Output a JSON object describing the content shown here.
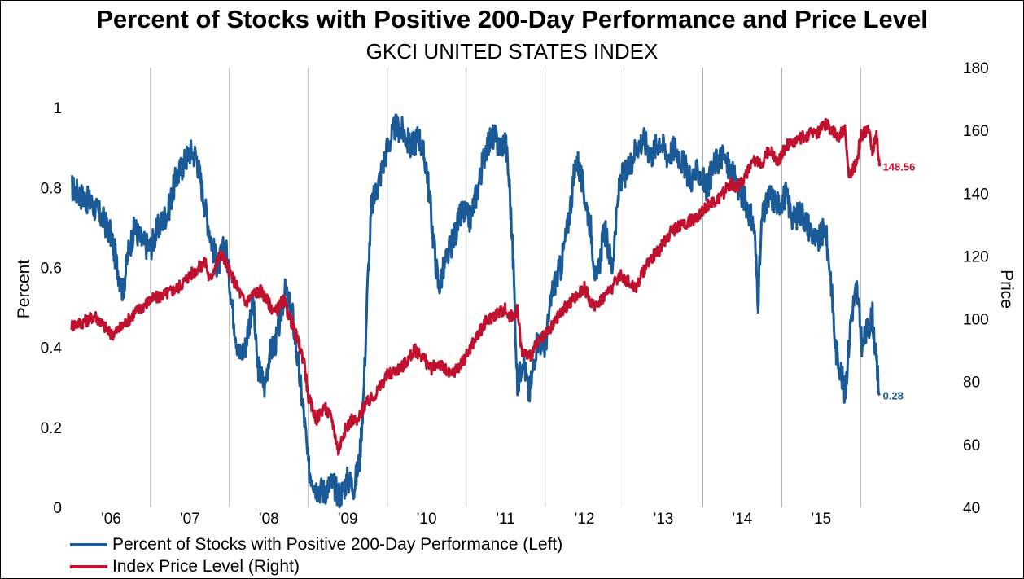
{
  "chart_data": {
    "type": "line",
    "title": "Percent of Stocks with Positive 200-Day Performance and Price Level",
    "subtitle": "GKCI UNITED STATES INDEX",
    "ylabel_left": "Percent",
    "ylabel_right": "Price",
    "xlabel": "",
    "x_ticks": [
      "'06",
      "'07",
      "'08",
      "'09",
      "'10",
      "'11",
      "'12",
      "'13",
      "'14",
      "'15"
    ],
    "x_range": [
      2005.5,
      2016.25
    ],
    "y_left_ticks": [
      "0",
      "0.2",
      "0.4",
      "0.6",
      "0.8",
      "1"
    ],
    "y_left_range": [
      0,
      1.1
    ],
    "y_right_ticks": [
      "40",
      "60",
      "80",
      "100",
      "120",
      "140",
      "160",
      "180"
    ],
    "y_right_range": [
      40,
      180
    ],
    "grid": "vertical",
    "legend_position": "bottom-left",
    "series": [
      {
        "name": "Percent of Stocks with Positive 200-Day Performance  (Left)",
        "axis": "left",
        "color": "#1a5a96",
        "end_label": "0.28",
        "points": [
          [
            2005.5,
            0.8
          ],
          [
            2005.62,
            0.78
          ],
          [
            2005.75,
            0.76
          ],
          [
            2005.9,
            0.72
          ],
          [
            2006.0,
            0.68
          ],
          [
            2006.08,
            0.6
          ],
          [
            2006.15,
            0.54
          ],
          [
            2006.22,
            0.64
          ],
          [
            2006.3,
            0.7
          ],
          [
            2006.4,
            0.66
          ],
          [
            2006.5,
            0.65
          ],
          [
            2006.6,
            0.7
          ],
          [
            2006.72,
            0.74
          ],
          [
            2006.82,
            0.82
          ],
          [
            2006.92,
            0.86
          ],
          [
            2007.0,
            0.89
          ],
          [
            2007.08,
            0.88
          ],
          [
            2007.15,
            0.8
          ],
          [
            2007.2,
            0.74
          ],
          [
            2007.28,
            0.66
          ],
          [
            2007.35,
            0.6
          ],
          [
            2007.45,
            0.66
          ],
          [
            2007.55,
            0.48
          ],
          [
            2007.62,
            0.38
          ],
          [
            2007.7,
            0.4
          ],
          [
            2007.8,
            0.52
          ],
          [
            2007.85,
            0.36
          ],
          [
            2007.95,
            0.3
          ],
          [
            2008.0,
            0.38
          ],
          [
            2008.1,
            0.42
          ],
          [
            2008.2,
            0.54
          ],
          [
            2008.3,
            0.48
          ],
          [
            2008.38,
            0.34
          ],
          [
            2008.45,
            0.22
          ],
          [
            2008.5,
            0.1
          ],
          [
            2008.6,
            0.05
          ],
          [
            2008.7,
            0.04
          ],
          [
            2008.8,
            0.06
          ],
          [
            2008.9,
            0.03
          ],
          [
            2009.0,
            0.07
          ],
          [
            2009.08,
            0.05
          ],
          [
            2009.15,
            0.12
          ],
          [
            2009.2,
            0.28
          ],
          [
            2009.25,
            0.55
          ],
          [
            2009.3,
            0.75
          ],
          [
            2009.4,
            0.82
          ],
          [
            2009.5,
            0.9
          ],
          [
            2009.6,
            0.95
          ],
          [
            2009.7,
            0.94
          ],
          [
            2009.8,
            0.9
          ],
          [
            2009.9,
            0.93
          ],
          [
            2010.0,
            0.85
          ],
          [
            2010.08,
            0.68
          ],
          [
            2010.15,
            0.55
          ],
          [
            2010.25,
            0.62
          ],
          [
            2010.35,
            0.68
          ],
          [
            2010.45,
            0.74
          ],
          [
            2010.55,
            0.72
          ],
          [
            2010.65,
            0.8
          ],
          [
            2010.75,
            0.9
          ],
          [
            2010.85,
            0.93
          ],
          [
            2010.92,
            0.9
          ],
          [
            2011.0,
            0.92
          ],
          [
            2011.05,
            0.8
          ],
          [
            2011.1,
            0.6
          ],
          [
            2011.15,
            0.3
          ],
          [
            2011.22,
            0.38
          ],
          [
            2011.3,
            0.28
          ],
          [
            2011.4,
            0.42
          ],
          [
            2011.5,
            0.4
          ],
          [
            2011.6,
            0.55
          ],
          [
            2011.7,
            0.6
          ],
          [
            2011.8,
            0.72
          ],
          [
            2011.9,
            0.88
          ],
          [
            2012.0,
            0.78
          ],
          [
            2012.08,
            0.7
          ],
          [
            2012.15,
            0.55
          ],
          [
            2012.25,
            0.7
          ],
          [
            2012.35,
            0.6
          ],
          [
            2012.45,
            0.82
          ],
          [
            2012.55,
            0.84
          ],
          [
            2012.65,
            0.9
          ],
          [
            2012.75,
            0.92
          ],
          [
            2012.85,
            0.88
          ],
          [
            2012.95,
            0.92
          ],
          [
            2013.05,
            0.88
          ],
          [
            2013.15,
            0.9
          ],
          [
            2013.25,
            0.86
          ],
          [
            2013.35,
            0.82
          ],
          [
            2013.45,
            0.84
          ],
          [
            2013.55,
            0.8
          ],
          [
            2013.65,
            0.86
          ],
          [
            2013.75,
            0.88
          ],
          [
            2013.85,
            0.84
          ],
          [
            2013.95,
            0.8
          ],
          [
            2014.05,
            0.76
          ],
          [
            2014.15,
            0.7
          ],
          [
            2014.2,
            0.52
          ],
          [
            2014.25,
            0.72
          ],
          [
            2014.35,
            0.78
          ],
          [
            2014.45,
            0.76
          ],
          [
            2014.55,
            0.78
          ],
          [
            2014.65,
            0.72
          ],
          [
            2014.75,
            0.74
          ],
          [
            2014.85,
            0.7
          ],
          [
            2014.95,
            0.66
          ],
          [
            2015.05,
            0.7
          ],
          [
            2015.12,
            0.58
          ],
          [
            2015.18,
            0.4
          ],
          [
            2015.25,
            0.34
          ],
          [
            2015.3,
            0.28
          ],
          [
            2015.38,
            0.48
          ],
          [
            2015.45,
            0.55
          ],
          [
            2015.52,
            0.4
          ],
          [
            2015.58,
            0.44
          ],
          [
            2015.65,
            0.48
          ],
          [
            2015.7,
            0.36
          ],
          [
            2015.74,
            0.28
          ]
        ]
      },
      {
        "name": "Index Price Level (Right)",
        "axis": "right",
        "color": "#c0112e",
        "end_label": "148.56",
        "points": [
          [
            2005.5,
            98
          ],
          [
            2005.65,
            99
          ],
          [
            2005.8,
            101
          ],
          [
            2005.9,
            98
          ],
          [
            2006.0,
            95
          ],
          [
            2006.12,
            97
          ],
          [
            2006.3,
            102
          ],
          [
            2006.5,
            106
          ],
          [
            2006.7,
            108
          ],
          [
            2006.85,
            110
          ],
          [
            2007.0,
            114
          ],
          [
            2007.1,
            116
          ],
          [
            2007.2,
            118
          ],
          [
            2007.25,
            112
          ],
          [
            2007.32,
            117
          ],
          [
            2007.4,
            121
          ],
          [
            2007.5,
            115
          ],
          [
            2007.6,
            110
          ],
          [
            2007.7,
            105
          ],
          [
            2007.8,
            108
          ],
          [
            2007.9,
            109
          ],
          [
            2008.0,
            105
          ],
          [
            2008.08,
            102
          ],
          [
            2008.18,
            106
          ],
          [
            2008.3,
            98
          ],
          [
            2008.38,
            92
          ],
          [
            2008.45,
            86
          ],
          [
            2008.5,
            75
          ],
          [
            2008.6,
            68
          ],
          [
            2008.7,
            72
          ],
          [
            2008.8,
            68
          ],
          [
            2008.88,
            58
          ],
          [
            2008.95,
            64
          ],
          [
            2009.05,
            68
          ],
          [
            2009.12,
            67
          ],
          [
            2009.2,
            72
          ],
          [
            2009.35,
            76
          ],
          [
            2009.5,
            82
          ],
          [
            2009.7,
            85
          ],
          [
            2009.85,
            90
          ],
          [
            2009.95,
            88
          ],
          [
            2010.05,
            84
          ],
          [
            2010.15,
            86
          ],
          [
            2010.3,
            82
          ],
          [
            2010.45,
            86
          ],
          [
            2010.6,
            93
          ],
          [
            2010.75,
            99
          ],
          [
            2010.9,
            102
          ],
          [
            2011.0,
            103
          ],
          [
            2011.05,
            100
          ],
          [
            2011.15,
            103
          ],
          [
            2011.2,
            90
          ],
          [
            2011.3,
            88
          ],
          [
            2011.4,
            92
          ],
          [
            2011.55,
            96
          ],
          [
            2011.7,
            102
          ],
          [
            2011.85,
            106
          ],
          [
            2012.0,
            110
          ],
          [
            2012.1,
            104
          ],
          [
            2012.2,
            106
          ],
          [
            2012.35,
            110
          ],
          [
            2012.45,
            114
          ],
          [
            2012.55,
            112
          ],
          [
            2012.65,
            110
          ],
          [
            2012.8,
            118
          ],
          [
            2012.95,
            122
          ],
          [
            2013.1,
            128
          ],
          [
            2013.25,
            130
          ],
          [
            2013.4,
            132
          ],
          [
            2013.55,
            136
          ],
          [
            2013.7,
            138
          ],
          [
            2013.85,
            143
          ],
          [
            2013.95,
            142
          ],
          [
            2014.05,
            146
          ],
          [
            2014.15,
            150
          ],
          [
            2014.25,
            150
          ],
          [
            2014.35,
            154
          ],
          [
            2014.45,
            150
          ],
          [
            2014.55,
            155
          ],
          [
            2014.7,
            157
          ],
          [
            2014.8,
            158
          ],
          [
            2014.9,
            160
          ],
          [
            2014.95,
            159
          ],
          [
            2015.05,
            162
          ],
          [
            2015.15,
            160
          ],
          [
            2015.2,
            158
          ],
          [
            2015.3,
            160
          ],
          [
            2015.35,
            145
          ],
          [
            2015.45,
            150
          ],
          [
            2015.5,
            158
          ],
          [
            2015.6,
            160
          ],
          [
            2015.65,
            154
          ],
          [
            2015.7,
            158
          ],
          [
            2015.74,
            148.56
          ]
        ]
      }
    ]
  }
}
